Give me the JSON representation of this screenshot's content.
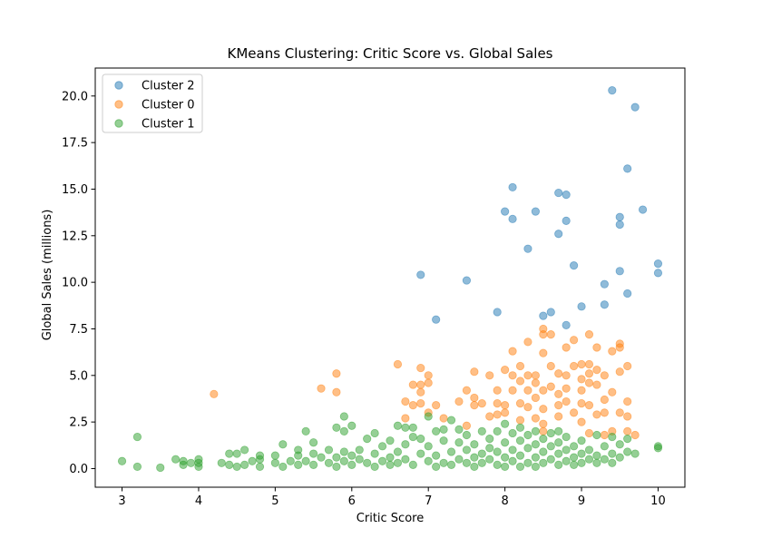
{
  "chart_data": {
    "type": "scatter",
    "title": "KMeans Clustering: Critic Score vs. Global Sales",
    "xlabel": "Critic Score",
    "ylabel": "Global Sales (millions)",
    "xlim": [
      2.65,
      10.35
    ],
    "ylim": [
      -1.0,
      21.5
    ],
    "x_ticks": [
      3,
      4,
      5,
      6,
      7,
      8,
      9,
      10
    ],
    "y_ticks": [
      0.0,
      2.5,
      5.0,
      7.5,
      10.0,
      12.5,
      15.0,
      17.5,
      20.0
    ],
    "x_tick_labels": [
      "3",
      "4",
      "5",
      "6",
      "7",
      "8",
      "9",
      "10"
    ],
    "y_tick_labels": [
      "0.0",
      "2.5",
      "5.0",
      "7.5",
      "10.0",
      "12.5",
      "15.0",
      "17.5",
      "20.0"
    ],
    "grid": false,
    "legend_position": "top-left",
    "series": [
      {
        "name": "Cluster 2",
        "color": "#1f77b4",
        "points": [
          [
            6.9,
            10.4
          ],
          [
            7.1,
            8.0
          ],
          [
            7.5,
            10.1
          ],
          [
            7.9,
            8.4
          ],
          [
            8.0,
            13.8
          ],
          [
            8.1,
            15.1
          ],
          [
            8.1,
            13.4
          ],
          [
            8.3,
            11.8
          ],
          [
            8.4,
            13.8
          ],
          [
            8.5,
            8.2
          ],
          [
            8.6,
            8.4
          ],
          [
            8.7,
            14.8
          ],
          [
            8.7,
            12.6
          ],
          [
            8.8,
            14.7
          ],
          [
            8.8,
            13.3
          ],
          [
            8.8,
            7.7
          ],
          [
            8.9,
            10.9
          ],
          [
            9.0,
            8.7
          ],
          [
            9.3,
            9.9
          ],
          [
            9.3,
            8.8
          ],
          [
            9.4,
            20.3
          ],
          [
            9.5,
            13.5
          ],
          [
            9.5,
            13.1
          ],
          [
            9.5,
            10.6
          ],
          [
            9.6,
            16.1
          ],
          [
            9.6,
            9.4
          ],
          [
            9.7,
            19.4
          ],
          [
            9.8,
            13.9
          ],
          [
            10.0,
            11.0
          ],
          [
            10.0,
            10.5
          ]
        ]
      },
      {
        "name": "Cluster 0",
        "color": "#ff7f0e",
        "points": [
          [
            4.2,
            4.0
          ],
          [
            5.6,
            4.3
          ],
          [
            5.8,
            5.1
          ],
          [
            5.8,
            4.1
          ],
          [
            6.6,
            5.6
          ],
          [
            6.7,
            2.7
          ],
          [
            6.7,
            3.6
          ],
          [
            6.8,
            3.4
          ],
          [
            6.8,
            4.5
          ],
          [
            6.9,
            5.4
          ],
          [
            6.9,
            4.5
          ],
          [
            6.9,
            4.1
          ],
          [
            6.9,
            3.5
          ],
          [
            7.0,
            5.0
          ],
          [
            7.0,
            4.6
          ],
          [
            7.0,
            3.0
          ],
          [
            7.1,
            3.4
          ],
          [
            7.2,
            2.7
          ],
          [
            7.4,
            3.6
          ],
          [
            7.5,
            4.2
          ],
          [
            7.5,
            2.3
          ],
          [
            7.6,
            5.2
          ],
          [
            7.6,
            3.8
          ],
          [
            7.6,
            3.4
          ],
          [
            7.7,
            3.5
          ],
          [
            7.8,
            5.0
          ],
          [
            7.8,
            2.8
          ],
          [
            7.9,
            4.2
          ],
          [
            7.9,
            3.5
          ],
          [
            7.9,
            2.9
          ],
          [
            8.0,
            5.3
          ],
          [
            8.0,
            3.4
          ],
          [
            8.0,
            3.0
          ],
          [
            8.1,
            6.3
          ],
          [
            8.1,
            5.0
          ],
          [
            8.1,
            4.2
          ],
          [
            8.2,
            5.5
          ],
          [
            8.2,
            4.7
          ],
          [
            8.2,
            3.5
          ],
          [
            8.2,
            2.6
          ],
          [
            8.3,
            6.8
          ],
          [
            8.3,
            5.0
          ],
          [
            8.3,
            4.2
          ],
          [
            8.3,
            3.3
          ],
          [
            8.4,
            5.0
          ],
          [
            8.4,
            4.6
          ],
          [
            8.4,
            3.8
          ],
          [
            8.4,
            2.7
          ],
          [
            8.5,
            7.5
          ],
          [
            8.5,
            7.2
          ],
          [
            8.5,
            6.2
          ],
          [
            8.5,
            4.2
          ],
          [
            8.5,
            3.2
          ],
          [
            8.5,
            2.4
          ],
          [
            8.6,
            7.2
          ],
          [
            8.6,
            5.5
          ],
          [
            8.6,
            4.4
          ],
          [
            8.7,
            5.1
          ],
          [
            8.7,
            4.0
          ],
          [
            8.7,
            3.4
          ],
          [
            8.7,
            2.8
          ],
          [
            8.8,
            6.5
          ],
          [
            8.8,
            5.0
          ],
          [
            8.8,
            4.3
          ],
          [
            8.8,
            3.6
          ],
          [
            8.9,
            6.9
          ],
          [
            8.9,
            5.5
          ],
          [
            8.9,
            3.0
          ],
          [
            9.0,
            5.6
          ],
          [
            9.0,
            4.8
          ],
          [
            9.0,
            4.2
          ],
          [
            9.0,
            3.5
          ],
          [
            9.0,
            2.5
          ],
          [
            9.1,
            7.2
          ],
          [
            9.1,
            5.6
          ],
          [
            9.1,
            5.1
          ],
          [
            9.1,
            4.6
          ],
          [
            9.1,
            3.4
          ],
          [
            9.1,
            1.9
          ],
          [
            9.2,
            6.5
          ],
          [
            9.2,
            5.3
          ],
          [
            9.2,
            4.5
          ],
          [
            9.2,
            2.9
          ],
          [
            9.3,
            5.0
          ],
          [
            9.3,
            3.7
          ],
          [
            9.3,
            3.0
          ],
          [
            9.4,
            6.3
          ],
          [
            9.4,
            4.1
          ],
          [
            9.4,
            2.0
          ],
          [
            9.5,
            6.7
          ],
          [
            9.5,
            6.5
          ],
          [
            9.5,
            5.2
          ],
          [
            9.5,
            3.0
          ],
          [
            9.6,
            5.5
          ],
          [
            9.6,
            3.6
          ],
          [
            9.6,
            2.8
          ],
          [
            9.7,
            1.8
          ],
          [
            9.6,
            2.0
          ],
          [
            9.3,
            1.8
          ],
          [
            8.5,
            2.0
          ]
        ]
      },
      {
        "name": "Cluster 1",
        "color": "#2ca02c",
        "points": [
          [
            3.0,
            0.4
          ],
          [
            3.2,
            1.7
          ],
          [
            3.2,
            0.1
          ],
          [
            3.5,
            0.05
          ],
          [
            3.7,
            0.5
          ],
          [
            3.8,
            0.2
          ],
          [
            3.8,
            0.4
          ],
          [
            3.9,
            0.3
          ],
          [
            4.0,
            0.1
          ],
          [
            4.0,
            0.5
          ],
          [
            4.0,
            0.3
          ],
          [
            4.3,
            0.3
          ],
          [
            4.4,
            0.8
          ],
          [
            4.4,
            0.2
          ],
          [
            4.5,
            0.1
          ],
          [
            4.5,
            0.8
          ],
          [
            4.6,
            1.0
          ],
          [
            4.6,
            0.2
          ],
          [
            4.7,
            0.4
          ],
          [
            4.8,
            0.1
          ],
          [
            4.8,
            0.5
          ],
          [
            4.8,
            0.7
          ],
          [
            5.0,
            0.3
          ],
          [
            5.0,
            0.7
          ],
          [
            5.1,
            0.1
          ],
          [
            5.1,
            1.3
          ],
          [
            5.2,
            0.4
          ],
          [
            5.3,
            0.2
          ],
          [
            5.3,
            0.7
          ],
          [
            5.3,
            1.0
          ],
          [
            5.4,
            2.0
          ],
          [
            5.4,
            0.4
          ],
          [
            5.5,
            1.4
          ],
          [
            5.5,
            0.2
          ],
          [
            5.5,
            0.8
          ],
          [
            5.6,
            0.6
          ],
          [
            5.7,
            0.3
          ],
          [
            5.7,
            1.0
          ],
          [
            5.8,
            0.1
          ],
          [
            5.8,
            2.2
          ],
          [
            5.8,
            0.6
          ],
          [
            5.9,
            2.8
          ],
          [
            5.9,
            2.0
          ],
          [
            5.9,
            0.4
          ],
          [
            5.9,
            0.9
          ],
          [
            6.0,
            2.3
          ],
          [
            6.0,
            0.7
          ],
          [
            6.0,
            0.2
          ],
          [
            6.1,
            1.0
          ],
          [
            6.1,
            0.5
          ],
          [
            6.2,
            0.3
          ],
          [
            6.2,
            1.6
          ],
          [
            6.3,
            1.9
          ],
          [
            6.3,
            0.8
          ],
          [
            6.3,
            0.1
          ],
          [
            6.4,
            0.4
          ],
          [
            6.4,
            1.2
          ],
          [
            6.5,
            0.6
          ],
          [
            6.5,
            0.2
          ],
          [
            6.5,
            1.5
          ],
          [
            6.6,
            2.3
          ],
          [
            6.6,
            0.9
          ],
          [
            6.6,
            0.3
          ],
          [
            6.7,
            2.2
          ],
          [
            6.7,
            1.3
          ],
          [
            6.7,
            0.5
          ],
          [
            6.8,
            1.7
          ],
          [
            6.8,
            0.2
          ],
          [
            6.8,
            2.2
          ],
          [
            6.9,
            0.8
          ],
          [
            6.9,
            1.6
          ],
          [
            7.0,
            2.8
          ],
          [
            7.0,
            0.4
          ],
          [
            7.0,
            1.2
          ],
          [
            7.1,
            2.0
          ],
          [
            7.1,
            0.7
          ],
          [
            7.1,
            0.1
          ],
          [
            7.2,
            1.5
          ],
          [
            7.2,
            0.3
          ],
          [
            7.2,
            2.1
          ],
          [
            7.3,
            2.6
          ],
          [
            7.3,
            0.9
          ],
          [
            7.3,
            0.2
          ],
          [
            7.4,
            1.4
          ],
          [
            7.4,
            0.5
          ],
          [
            7.4,
            2.1
          ],
          [
            7.5,
            1.0
          ],
          [
            7.5,
            0.3
          ],
          [
            7.5,
            1.8
          ],
          [
            7.6,
            0.6
          ],
          [
            7.6,
            1.3
          ],
          [
            7.6,
            0.1
          ],
          [
            7.7,
            2.0
          ],
          [
            7.7,
            0.8
          ],
          [
            7.7,
            0.3
          ],
          [
            7.8,
            1.6
          ],
          [
            7.8,
            0.5
          ],
          [
            7.8,
            1.1
          ],
          [
            7.9,
            2.0
          ],
          [
            7.9,
            0.9
          ],
          [
            7.9,
            0.2
          ],
          [
            8.0,
            2.4
          ],
          [
            8.0,
            1.4
          ],
          [
            8.0,
            0.6
          ],
          [
            8.0,
            0.1
          ],
          [
            8.1,
            1.9
          ],
          [
            8.1,
            1.0
          ],
          [
            8.1,
            0.4
          ],
          [
            8.2,
            2.2
          ],
          [
            8.2,
            1.5
          ],
          [
            8.2,
            0.7
          ],
          [
            8.2,
            0.1
          ],
          [
            8.3,
            1.8
          ],
          [
            8.3,
            1.1
          ],
          [
            8.3,
            0.3
          ],
          [
            8.4,
            2.0
          ],
          [
            8.4,
            1.3
          ],
          [
            8.4,
            0.6
          ],
          [
            8.4,
            0.1
          ],
          [
            8.5,
            1.6
          ],
          [
            8.5,
            0.9
          ],
          [
            8.5,
            0.3
          ],
          [
            8.6,
            1.9
          ],
          [
            8.6,
            1.2
          ],
          [
            8.6,
            0.5
          ],
          [
            8.7,
            2.0
          ],
          [
            8.7,
            1.4
          ],
          [
            8.7,
            0.8
          ],
          [
            8.7,
            0.2
          ],
          [
            8.8,
            1.7
          ],
          [
            8.8,
            1.0
          ],
          [
            8.8,
            0.4
          ],
          [
            8.9,
            1.2
          ],
          [
            8.9,
            0.6
          ],
          [
            8.9,
            0.2
          ],
          [
            9.0,
            1.5
          ],
          [
            9.0,
            0.8
          ],
          [
            9.0,
            0.3
          ],
          [
            9.1,
            1.0
          ],
          [
            9.1,
            0.5
          ],
          [
            9.2,
            1.8
          ],
          [
            9.2,
            0.7
          ],
          [
            9.2,
            0.3
          ],
          [
            9.3,
            1.2
          ],
          [
            9.3,
            0.5
          ],
          [
            9.4,
            1.7
          ],
          [
            9.4,
            0.8
          ],
          [
            9.4,
            0.3
          ],
          [
            9.5,
            1.3
          ],
          [
            9.5,
            0.6
          ],
          [
            9.6,
            1.6
          ],
          [
            9.6,
            0.9
          ],
          [
            9.7,
            0.8
          ],
          [
            10.0,
            1.1
          ],
          [
            10.0,
            1.2
          ]
        ]
      }
    ]
  }
}
